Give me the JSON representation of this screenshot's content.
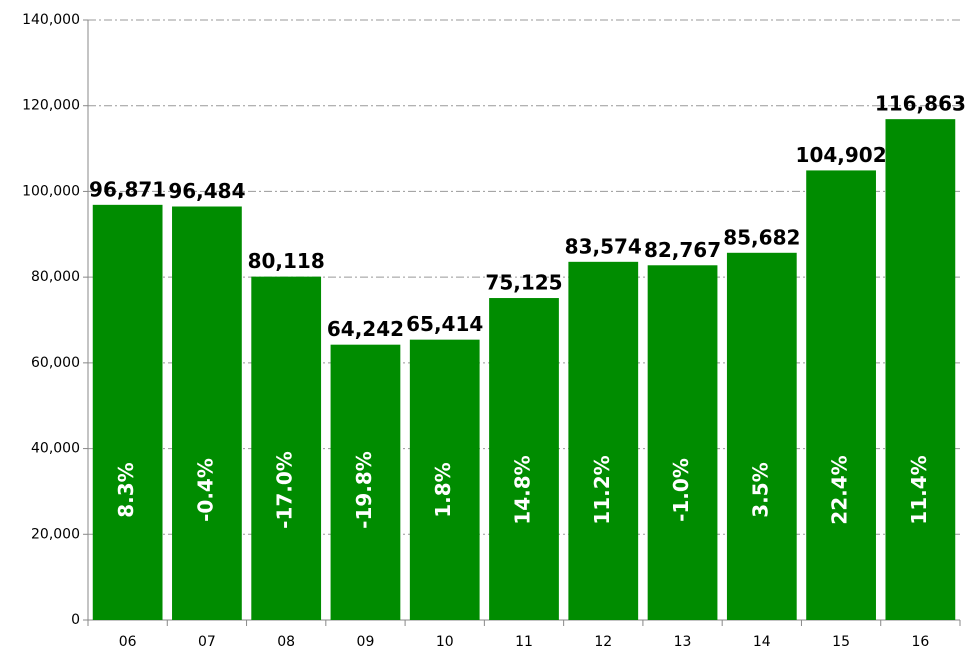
{
  "chart_data": {
    "type": "bar",
    "categories": [
      "06",
      "07",
      "08",
      "09",
      "10",
      "11",
      "12",
      "13",
      "14",
      "15",
      "16"
    ],
    "values": [
      96871,
      96484,
      80118,
      64242,
      65414,
      75125,
      83574,
      82767,
      85682,
      104902,
      116863
    ],
    "value_labels": [
      "96,871",
      "96,484",
      "80,118",
      "64,242",
      "65,414",
      "75,125",
      "83,574",
      "82,767",
      "85,682",
      "104,902",
      "116,863"
    ],
    "growth_labels": [
      "8.3%",
      "-0.4%",
      "-17.0%",
      "-19.8%",
      "1.8%",
      "14.8%",
      "11.2%",
      "-1.0%",
      "3.5%",
      "22.4%",
      "11.4%"
    ],
    "color": "#008c00",
    "ylim": [
      0,
      140000
    ],
    "yticks": [
      0,
      {
        "value": 20000,
        "label": "20,000"
      },
      {
        "value": 40000,
        "label": "40,000"
      },
      {
        "value": 60000,
        "label": "60,000"
      },
      {
        "value": 80000,
        "label": "80,000"
      },
      {
        "value": 100000,
        "label": "100,000"
      },
      {
        "value": 120000,
        "label": "120,000"
      },
      {
        "value": 140000,
        "label": "140,000"
      }
    ],
    "grid": true
  }
}
